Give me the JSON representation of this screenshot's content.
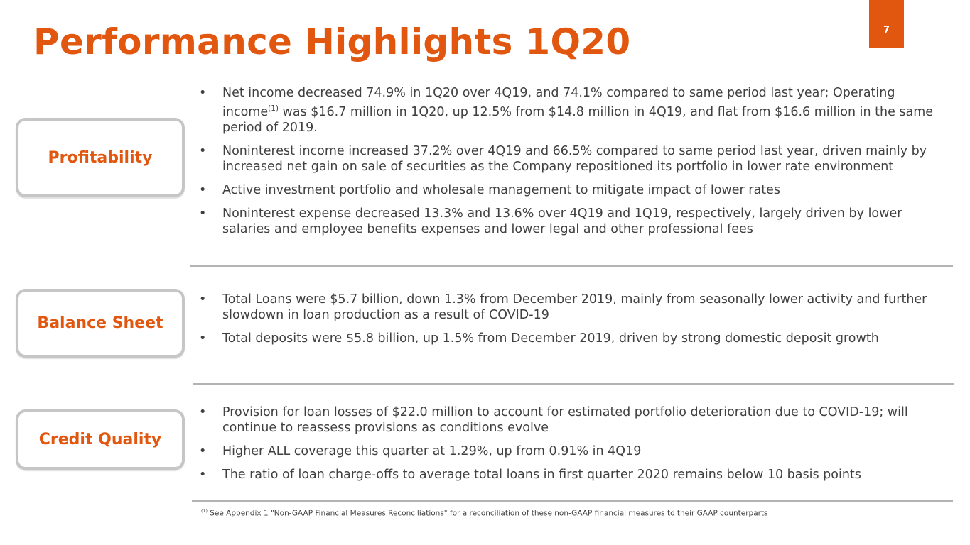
{
  "title": "Performance Highlights 1Q20",
  "page_number": "7",
  "sections": [
    {
      "label": "Profitability",
      "bullets": [
        {
          "pre": "Net income decreased 74.9% in 1Q20 over 4Q19, and 74.1% compared to same period last year; Operating income",
          "sup": "(1)",
          "post": " was $16.7 million in 1Q20, up 12.5% from $14.8 million in 4Q19, and flat from $16.6 million in the same period of 2019."
        },
        {
          "pre": "Noninterest income increased 37.2% over 4Q19 and 66.5% compared to same period last year, driven mainly by increased net gain on sale of securities as the Company repositioned its portfolio in lower rate environment"
        },
        {
          "pre": "Active investment portfolio and wholesale management to mitigate impact of lower rates"
        },
        {
          "pre": "Noninterest expense decreased 13.3% and 13.6% over 4Q19 and 1Q19, respectively, largely driven by lower salaries and employee benefits expenses and lower legal and other professional fees"
        }
      ]
    },
    {
      "label": "Balance Sheet",
      "bullets": [
        {
          "pre": "Total Loans were $5.7 billion, down 1.3% from December 2019, mainly from seasonally lower activity and further slowdown in loan production as a result of COVID-19"
        },
        {
          "pre": "Total deposits were $5.8 billion, up 1.5% from December 2019, driven by strong domestic deposit growth"
        }
      ]
    },
    {
      "label": "Credit Quality",
      "bullets": [
        {
          "pre": "Provision for loan losses of $22.0 million to account for estimated portfolio deterioration due to COVID-19; will continue to reassess provisions as conditions evolve"
        },
        {
          "pre": "Higher ALL coverage this quarter at 1.29%, up from 0.91% in 4Q19"
        },
        {
          "pre": "The ratio of loan charge-offs to average total loans in first quarter 2020 remains below 10 basis points"
        }
      ]
    }
  ],
  "bullet_char": "•",
  "footnote": {
    "sup": "(1)",
    "text": " See Appendix 1 \"Non-GAAP Financial Measures Reconciliations\" for a reconciliation of these non-GAAP financial measures to their GAAP counterparts"
  }
}
